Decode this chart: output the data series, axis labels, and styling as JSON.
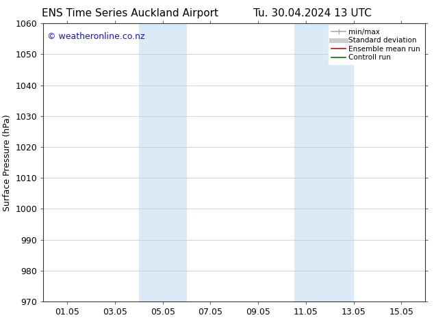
{
  "title_left": "ENS Time Series Auckland Airport",
  "title_right": "Tu. 30.04.2024 13 UTC",
  "ylabel": "Surface Pressure (hPa)",
  "ylim": [
    970,
    1060
  ],
  "yticks": [
    970,
    980,
    990,
    1000,
    1010,
    1020,
    1030,
    1040,
    1050,
    1060
  ],
  "xtick_labels": [
    "01.05",
    "03.05",
    "05.05",
    "07.05",
    "09.05",
    "11.05",
    "13.05",
    "15.05"
  ],
  "xtick_positions": [
    1,
    3,
    5,
    7,
    9,
    11,
    13,
    15
  ],
  "xlim": [
    0.0,
    16.0
  ],
  "shaded_bands": [
    {
      "x_start": 4.0,
      "x_end": 6.0,
      "color": "#daeaf6"
    },
    {
      "x_start": 10.5,
      "x_end": 13.0,
      "color": "#daeaf6"
    }
  ],
  "watermark_text": "© weatheronline.co.nz",
  "watermark_color": "#1515cc",
  "legend_items": [
    {
      "label": "min/max",
      "color": "#aaaaaa",
      "lw": 1.2
    },
    {
      "label": "Standard deviation",
      "color": "#cccccc",
      "lw": 5
    },
    {
      "label": "Ensemble mean run",
      "color": "#dd0000",
      "lw": 1.2
    },
    {
      "label": "Controll run",
      "color": "#007700",
      "lw": 1.2
    }
  ],
  "bg_color": "#ffffff",
  "grid_color": "#cccccc",
  "title_fontsize": 11,
  "axis_label_fontsize": 9,
  "tick_fontsize": 9,
  "watermark_fontsize": 9
}
